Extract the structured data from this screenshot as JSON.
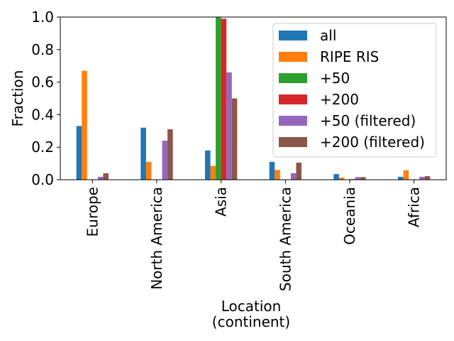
{
  "chart_data": {
    "type": "bar",
    "xlabel": "Location\n(continent)",
    "ylabel": "Fraction",
    "ylim": [
      0,
      1.0
    ],
    "yticks": [
      "0.0",
      "0.2",
      "0.4",
      "0.6",
      "0.8",
      "1.0"
    ],
    "grid": false,
    "legend_position": "top-right",
    "categories": [
      "Europe",
      "North America",
      "Asia",
      "South America",
      "Oceania",
      "Africa"
    ],
    "series": [
      {
        "name": "all",
        "color": "#1f77b4",
        "values": [
          0.33,
          0.32,
          0.18,
          0.11,
          0.035,
          0.018
        ]
      },
      {
        "name": "RIPE RIS",
        "color": "#ff7f0e",
        "values": [
          0.67,
          0.11,
          0.085,
          0.06,
          0.013,
          0.058
        ]
      },
      {
        "name": "+50",
        "color": "#2ca02c",
        "values": [
          0.0,
          0.0,
          1.0,
          0.0,
          0.0,
          0.0
        ]
      },
      {
        "name": "+200",
        "color": "#d62728",
        "values": [
          0.0,
          0.0,
          0.99,
          0.0,
          0.004,
          0.0
        ]
      },
      {
        "name": "+50 (filtered)",
        "color": "#9467bd",
        "values": [
          0.018,
          0.24,
          0.66,
          0.04,
          0.016,
          0.018
        ]
      },
      {
        "name": "+200 (filtered)",
        "color": "#8c564b",
        "values": [
          0.04,
          0.31,
          0.5,
          0.105,
          0.016,
          0.022
        ]
      }
    ]
  }
}
